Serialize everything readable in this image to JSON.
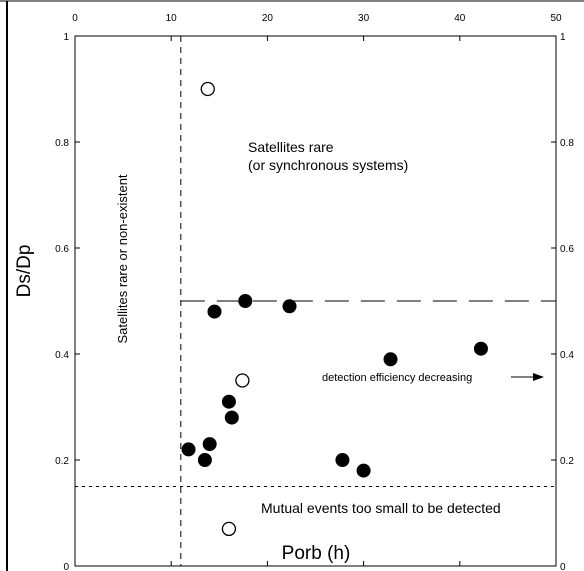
{
  "chart_data": {
    "type": "scatter",
    "xlabel": "Porb (h)",
    "ylabel": "Ds/Dp",
    "xlim": [
      0,
      50
    ],
    "ylim": [
      0,
      1
    ],
    "xticks": [
      0,
      10,
      20,
      30,
      40,
      50
    ],
    "yticks_left": [
      "0",
      "0.2",
      "0.4",
      "0.6",
      "0.8",
      "1"
    ],
    "yticks_right": [
      "0",
      "0.2",
      "0.4",
      "0.6",
      "0.8",
      "1"
    ],
    "series": [
      {
        "marker": "filled-circle",
        "color": "#000000",
        "points": [
          {
            "x": 11.8,
            "y": 0.22
          },
          {
            "x": 13.5,
            "y": 0.2
          },
          {
            "x": 14.0,
            "y": 0.23
          },
          {
            "x": 14.5,
            "y": 0.48
          },
          {
            "x": 16.0,
            "y": 0.31
          },
          {
            "x": 16.3,
            "y": 0.28
          },
          {
            "x": 17.7,
            "y": 0.5
          },
          {
            "x": 22.3,
            "y": 0.49
          },
          {
            "x": 27.8,
            "y": 0.2
          },
          {
            "x": 30.0,
            "y": 0.18
          },
          {
            "x": 32.8,
            "y": 0.39
          },
          {
            "x": 42.2,
            "y": 0.41
          }
        ]
      },
      {
        "marker": "open-circle",
        "color": "#000000",
        "points": [
          {
            "x": 13.8,
            "y": 0.9
          },
          {
            "x": 17.4,
            "y": 0.35
          },
          {
            "x": 16.0,
            "y": 0.07
          }
        ]
      }
    ],
    "reference_lines": {
      "vertical_x": 11,
      "horizontal_mid": {
        "y": 0.5,
        "x_from": 11,
        "x_to": 50
      },
      "horizontal_low": {
        "y": 0.15,
        "x_from": 11,
        "x_to": 50
      }
    },
    "annotations": {
      "satellites_rare_line1": "Satellites rare",
      "satellites_rare_line2": "(or synchronous systems)",
      "vertical_label": "Satellites rare or non-existent",
      "detection_label": "detection efficiency decreasing",
      "mutual_events_label": "Mutual events too small to be detected"
    },
    "grid": false,
    "legend": "none"
  }
}
